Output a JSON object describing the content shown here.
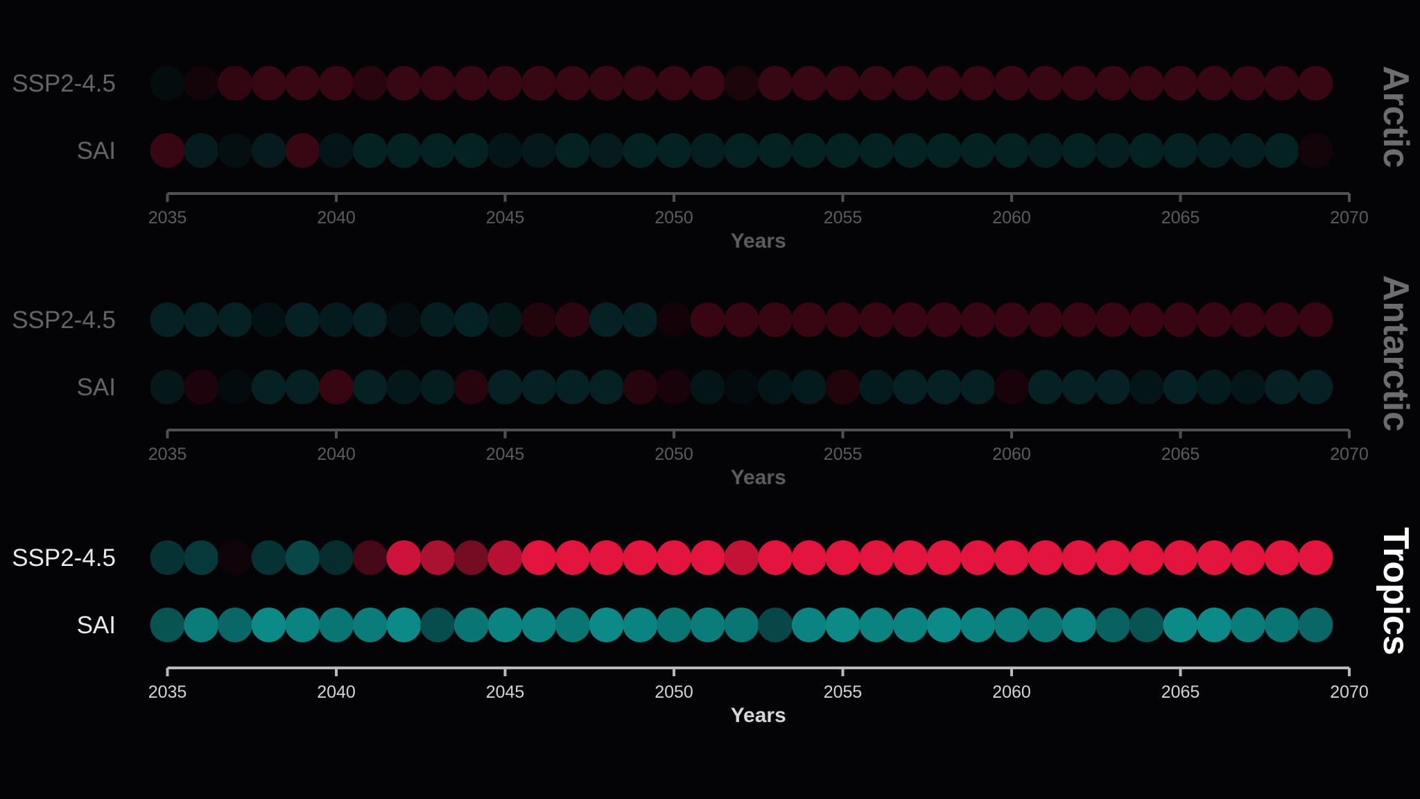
{
  "chart_data": {
    "type": "scatter",
    "encoding": "Each circle is one year; fill color indicates a category per row (red or teal). Dimmed panels are rendered at reduced opacity.",
    "colors": {
      "red_bright": "#e3153f",
      "red_medium": "#b5123a",
      "red_dark": "#76091f",
      "teal_bright": "#0b8a87",
      "teal_medium": "#0a6e6c",
      "teal_dark": "#05403f",
      "axis": "#b9b9be"
    },
    "x": [
      2035,
      2036,
      2037,
      2038,
      2039,
      2040,
      2041,
      2042,
      2043,
      2044,
      2045,
      2046,
      2047,
      2048,
      2049,
      2050,
      2051,
      2052,
      2053,
      2054,
      2055,
      2056,
      2057,
      2058,
      2059,
      2060,
      2061,
      2062,
      2063,
      2064,
      2065,
      2066,
      2067,
      2068,
      2069
    ],
    "panels": [
      {
        "region": "Arctic",
        "dimmed": true,
        "xlabel": "Years",
        "xlim": [
          2035,
          2070
        ],
        "xticks": [
          2035,
          2040,
          2045,
          2050,
          2055,
          2060,
          2065,
          2070
        ],
        "rows": [
          {
            "name": "SSP2-4.5",
            "values": [
              "t",
              "r",
              "r",
              "r",
              "r",
              "r",
              "r",
              "r",
              "r",
              "r",
              "r",
              "r",
              "r",
              "r",
              "r",
              "r",
              "r",
              "r",
              "r",
              "r",
              "r",
              "r",
              "r",
              "r",
              "r",
              "r",
              "r",
              "r",
              "r",
              "r",
              "r",
              "r",
              "r",
              "r",
              "r"
            ],
            "intensity": [
              0.3,
              0.3,
              0.9,
              1,
              1,
              1,
              0.7,
              1,
              1,
              1,
              1,
              1,
              1,
              1,
              1,
              1,
              1,
              0.5,
              1,
              1,
              1,
              1,
              1,
              1,
              1,
              1,
              1,
              1,
              1,
              1,
              1,
              1,
              1,
              1,
              1
            ]
          },
          {
            "name": "SAI",
            "values": [
              "r",
              "t",
              "t",
              "t",
              "r",
              "t",
              "t",
              "t",
              "t",
              "t",
              "t",
              "t",
              "t",
              "t",
              "t",
              "t",
              "t",
              "t",
              "t",
              "t",
              "t",
              "t",
              "t",
              "t",
              "t",
              "t",
              "t",
              "t",
              "t",
              "t",
              "t",
              "t",
              "t",
              "t",
              "r"
            ],
            "intensity": [
              1,
              0.8,
              0.4,
              0.8,
              1,
              0.6,
              1,
              1,
              1,
              1,
              0.6,
              0.7,
              1,
              0.8,
              1,
              1,
              0.9,
              1,
              1,
              1,
              1,
              1,
              1,
              1,
              1,
              1,
              0.9,
              1,
              0.9,
              1,
              1,
              0.9,
              0.9,
              1,
              0.3
            ]
          }
        ]
      },
      {
        "region": "Antarctic",
        "dimmed": true,
        "xlabel": "Years",
        "xlim": [
          2035,
          2070
        ],
        "xticks": [
          2035,
          2040,
          2045,
          2050,
          2055,
          2060,
          2065,
          2070
        ],
        "rows": [
          {
            "name": "SSP2-4.5",
            "values": [
              "t",
              "t",
              "t",
              "t",
              "t",
              "t",
              "t",
              "t",
              "t",
              "t",
              "t",
              "r",
              "r",
              "t",
              "t",
              "r",
              "r",
              "r",
              "r",
              "r",
              "r",
              "r",
              "r",
              "r",
              "r",
              "r",
              "r",
              "r",
              "r",
              "r",
              "r",
              "r",
              "r",
              "r",
              "r"
            ],
            "intensity": [
              1,
              1,
              1,
              0.5,
              1,
              0.8,
              1,
              0.4,
              0.9,
              1,
              0.7,
              0.6,
              0.8,
              1,
              1,
              0.3,
              1,
              1,
              1,
              1,
              1,
              1,
              1,
              1,
              1,
              1,
              1,
              1,
              1,
              1,
              1,
              1,
              1,
              1,
              1
            ]
          },
          {
            "name": "SAI",
            "values": [
              "t",
              "r",
              "t",
              "t",
              "t",
              "r",
              "t",
              "t",
              "t",
              "r",
              "t",
              "t",
              "t",
              "t",
              "r",
              "r",
              "t",
              "t",
              "t",
              "t",
              "r",
              "t",
              "t",
              "t",
              "t",
              "r",
              "t",
              "t",
              "t",
              "t",
              "t",
              "t",
              "t",
              "t",
              "t"
            ],
            "intensity": [
              0.7,
              0.5,
              0.3,
              1,
              1,
              1,
              1,
              0.7,
              0.9,
              0.7,
              1,
              1,
              1,
              1,
              0.7,
              0.4,
              0.6,
              0.3,
              0.6,
              0.8,
              0.6,
              0.8,
              1,
              1,
              1,
              0.4,
              1,
              1,
              1,
              0.6,
              1,
              0.8,
              0.6,
              1,
              1
            ]
          }
        ]
      },
      {
        "region": "Tropics",
        "dimmed": false,
        "xlabel": "Years",
        "xlim": [
          2035,
          2070
        ],
        "xticks": [
          2035,
          2040,
          2045,
          2050,
          2055,
          2060,
          2065,
          2070
        ],
        "rows": [
          {
            "name": "SSP2-4.5",
            "values": [
              "t",
              "t",
              "r",
              "t",
              "t",
              "t",
              "r",
              "r",
              "r",
              "r",
              "r",
              "r",
              "r",
              "r",
              "r",
              "r",
              "r",
              "r",
              "r",
              "r",
              "r",
              "r",
              "r",
              "r",
              "r",
              "r",
              "r",
              "r",
              "r",
              "r",
              "r",
              "r",
              "r",
              "r",
              "r"
            ],
            "intensity": [
              0.35,
              0.4,
              0.05,
              0.35,
              0.5,
              0.3,
              0.3,
              0.9,
              0.75,
              0.5,
              0.8,
              1,
              1,
              1,
              1,
              1,
              1,
              0.85,
              1,
              1,
              1,
              1,
              1,
              1,
              1,
              1,
              1,
              1,
              1,
              1,
              1,
              1,
              1,
              1,
              1
            ]
          },
          {
            "name": "SAI",
            "values": [
              "t",
              "t",
              "t",
              "t",
              "t",
              "t",
              "t",
              "t",
              "t",
              "t",
              "t",
              "t",
              "t",
              "t",
              "t",
              "t",
              "t",
              "t",
              "t",
              "t",
              "t",
              "t",
              "t",
              "t",
              "t",
              "t",
              "t",
              "t",
              "t",
              "t",
              "t",
              "t",
              "t",
              "t",
              "t"
            ],
            "intensity": [
              0.6,
              0.9,
              0.75,
              1,
              0.95,
              0.85,
              0.9,
              1,
              0.55,
              0.85,
              0.95,
              0.95,
              0.85,
              1,
              0.95,
              0.85,
              0.9,
              0.85,
              0.5,
              0.95,
              1,
              0.95,
              0.95,
              1,
              0.95,
              0.9,
              0.85,
              0.95,
              0.7,
              0.6,
              1,
              1,
              0.9,
              0.85,
              0.75
            ]
          }
        ]
      }
    ]
  }
}
